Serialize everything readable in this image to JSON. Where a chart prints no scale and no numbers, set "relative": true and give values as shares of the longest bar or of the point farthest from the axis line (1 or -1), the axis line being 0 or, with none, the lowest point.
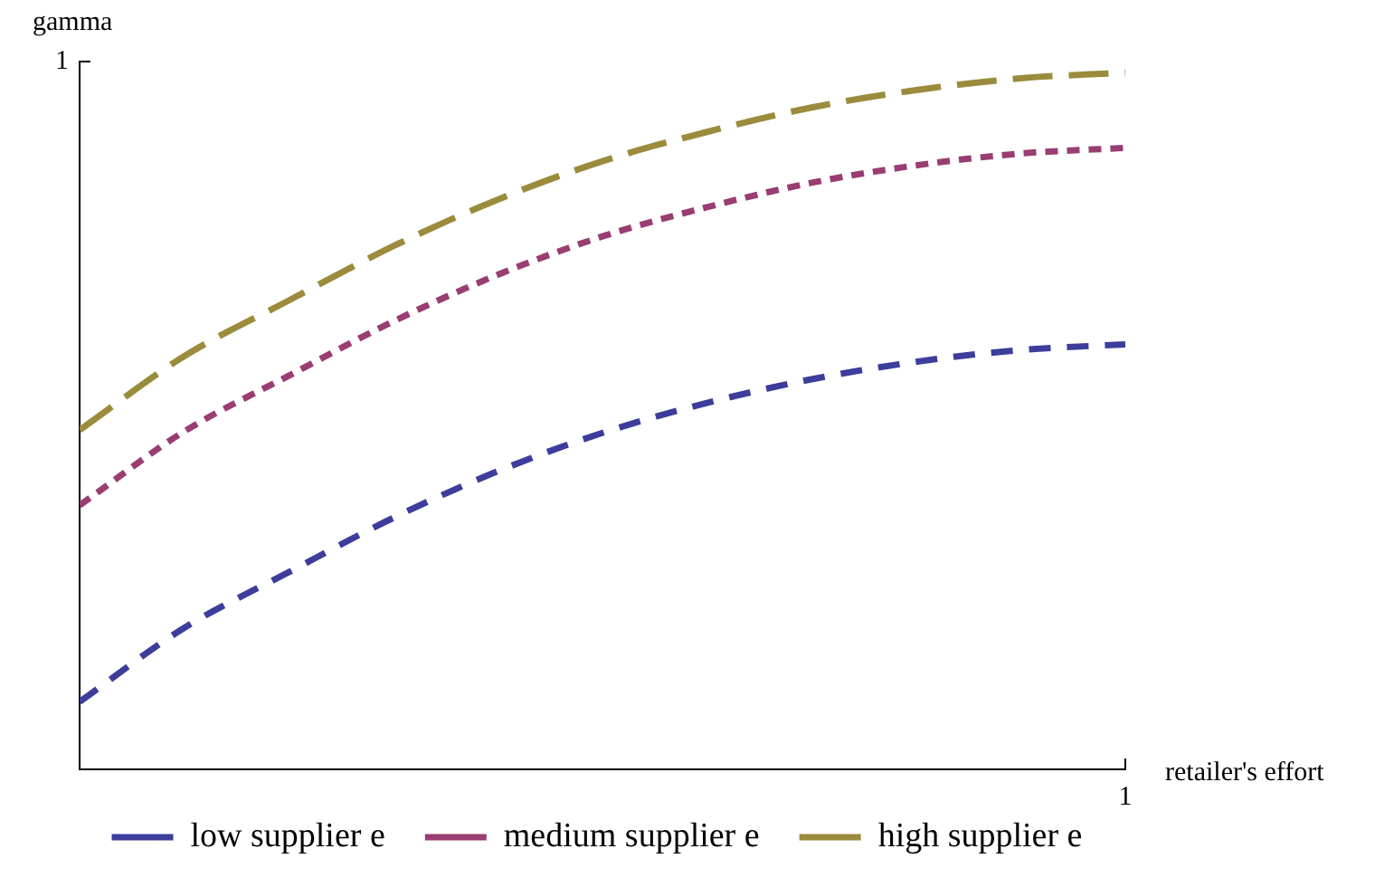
{
  "chart_data": {
    "type": "line",
    "xlabel": "retailer's effort",
    "ylabel": "gamma",
    "relative": true,
    "categories": [
      null,
      null,
      null,
      null,
      null,
      null,
      null,
      null,
      null,
      null,
      null
    ],
    "series": [
      {
        "name": "low supplier e",
        "color": "#3d3d9c",
        "line_style": "dashed",
        "values": [
          0.097,
          0.203,
          0.283,
          0.361,
          0.428,
          0.483,
          0.526,
          0.56,
          0.585,
          0.602,
          0.61
        ]
      },
      {
        "name": "medium supplier e",
        "color": "#993d72",
        "line_style": "dotted",
        "values": [
          0.379,
          0.485,
          0.565,
          0.643,
          0.71,
          0.765,
          0.807,
          0.842,
          0.867,
          0.884,
          0.892
        ]
      },
      {
        "name": "high supplier e",
        "color": "#9a8c3c",
        "line_style": "dashed",
        "values": [
          0.487,
          0.593,
          0.673,
          0.751,
          0.818,
          0.873,
          0.915,
          0.95,
          0.975,
          0.992,
          1
        ]
      }
    ],
    "annotations": [
      "1",
      "1"
    ],
    "legend": "bottom",
    "marker": "none"
  }
}
